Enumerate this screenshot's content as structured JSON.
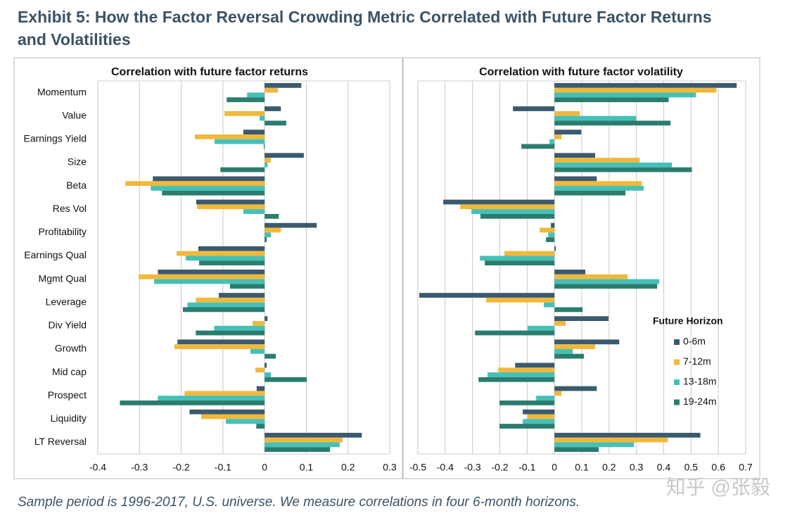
{
  "header": {
    "title_lines": [
      "Exhibit 5: How the Factor Reversal Crowding Metric Correlated with Future Factor Returns",
      "and Volatilities"
    ]
  },
  "chart_data": [
    {
      "type": "hbar",
      "title": "Correlation with future factor returns",
      "categories": [
        "Momentum",
        "Value",
        "Earnings Yield",
        "Size",
        "Beta",
        "Res Vol",
        "Profitability",
        "Earnings Qual",
        "Mgmt Qual",
        "Leverage",
        "Div Yield",
        "Growth",
        "Mid cap",
        "Prospect",
        "Liquidity",
        "LT Reversal"
      ],
      "series": [
        {
          "color": "#3b5a6e",
          "values": [
            0.088,
            0.039,
            -0.051,
            0.094,
            -0.268,
            -0.164,
            0.125,
            -0.159,
            -0.256,
            -0.11,
            0.007,
            -0.209,
            0.005,
            -0.019,
            -0.18,
            0.233
          ]
        },
        {
          "color": "#f0b83c",
          "values": [
            0.032,
            -0.096,
            -0.167,
            0.015,
            -0.334,
            -0.162,
            0.039,
            -0.211,
            -0.302,
            -0.165,
            -0.029,
            -0.216,
            -0.022,
            -0.192,
            -0.152,
            0.187
          ]
        },
        {
          "color": "#45c0b8",
          "values": [
            -0.042,
            -0.012,
            -0.12,
            0.007,
            -0.273,
            -0.051,
            0.015,
            -0.189,
            -0.265,
            -0.185,
            -0.121,
            -0.034,
            0.015,
            -0.256,
            -0.093,
            0.18
          ]
        },
        {
          "color": "#2a7d6e",
          "values": [
            -0.091,
            0.052,
            -0.002,
            -0.106,
            -0.246,
            0.034,
            0.005,
            -0.157,
            -0.083,
            -0.196,
            -0.165,
            0.027,
            0.101,
            -0.347,
            -0.02,
            0.157
          ]
        }
      ],
      "xlim": [
        -0.4,
        0.3
      ],
      "xticks": [
        -0.4,
        -0.3,
        -0.2,
        -0.1,
        0,
        0.1,
        0.2,
        0.3
      ],
      "grid": true
    },
    {
      "type": "hbar",
      "title": "Correlation with future factor volatility",
      "series": [
        {
          "name": "0-6m",
          "color": "#3b5a6e",
          "values": [
            0.667,
            -0.152,
            0.098,
            0.149,
            0.155,
            -0.407,
            -0.013,
            0.005,
            0.113,
            -0.495,
            0.198,
            0.237,
            -0.144,
            0.155,
            -0.116,
            0.534
          ]
        },
        {
          "name": "7-12m",
          "color": "#f0b83c",
          "values": [
            0.593,
            0.093,
            0.026,
            0.312,
            0.32,
            -0.345,
            -0.054,
            -0.183,
            0.268,
            -0.25,
            0.041,
            0.149,
            -0.206,
            0.026,
            -0.098,
            0.415
          ]
        },
        {
          "name": "13-18m",
          "color": "#45c0b8",
          "values": [
            0.518,
            0.299,
            -0.018,
            0.43,
            0.327,
            -0.304,
            -0.023,
            -0.273,
            0.384,
            -0.039,
            -0.098,
            0.067,
            -0.245,
            -0.067,
            -0.116,
            0.291
          ]
        },
        {
          "name": "19-24m",
          "color": "#2a7d6e",
          "values": [
            0.418,
            0.425,
            -0.121,
            0.503,
            0.26,
            -0.271,
            -0.031,
            -0.255,
            0.376,
            0.103,
            -0.291,
            0.108,
            -0.278,
            -0.201,
            -0.201,
            0.162
          ]
        }
      ],
      "xlim": [
        -0.5,
        0.7
      ],
      "xticks": [
        -0.5,
        -0.4,
        -0.3,
        -0.2,
        -0.1,
        0,
        0.1,
        0.2,
        0.3,
        0.4,
        0.5,
        0.6,
        0.7
      ],
      "grid": true,
      "legend": "right",
      "legend_title": "Future Horizon"
    }
  ],
  "footnote": "Sample period is 1996-2017, U.S. universe. We measure correlations in four 6-month horizons.",
  "watermark": "知乎 @张毅"
}
